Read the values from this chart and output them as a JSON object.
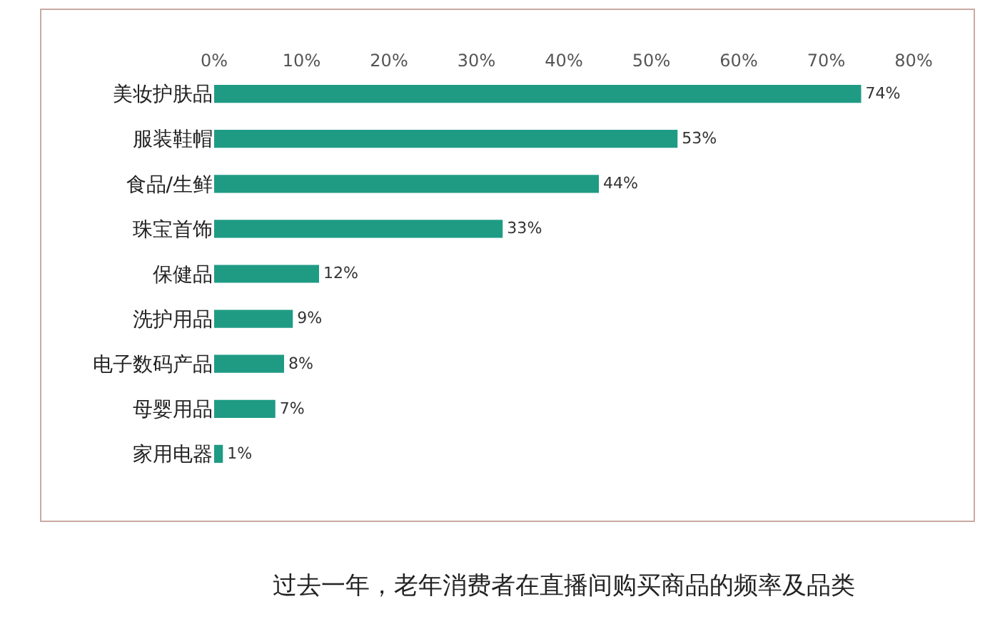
{
  "chart_data": {
    "type": "bar",
    "orientation": "horizontal",
    "categories": [
      "美妆护肤品",
      "服装鞋帽",
      "食品/生鲜",
      "珠宝首饰",
      "保健品",
      "洗护用品",
      "电子数码产品",
      "母婴用品",
      "家用电器"
    ],
    "values": [
      74,
      53,
      44,
      33,
      12,
      9,
      8,
      7,
      1
    ],
    "value_labels": [
      "74%",
      "53%",
      "44%",
      "33%",
      "12%",
      "9%",
      "8%",
      "7%",
      "1%"
    ],
    "color": "#1f9b84",
    "xlim": [
      0,
      80
    ],
    "xticks": [
      {
        "value": 0,
        "label": "0%"
      },
      {
        "value": 10,
        "label": "10%"
      },
      {
        "value": 20,
        "label": "20%"
      },
      {
        "value": 30,
        "label": "30%"
      },
      {
        "value": 40,
        "label": "40%"
      },
      {
        "value": 50,
        "label": "50%"
      },
      {
        "value": 60,
        "label": "60%"
      },
      {
        "value": 70,
        "label": "70%"
      },
      {
        "value": 80,
        "label": "80%"
      }
    ],
    "grid": false,
    "annotations": [
      "过去一年，老年消费者在直播间购买商品的频率及品类"
    ]
  }
}
